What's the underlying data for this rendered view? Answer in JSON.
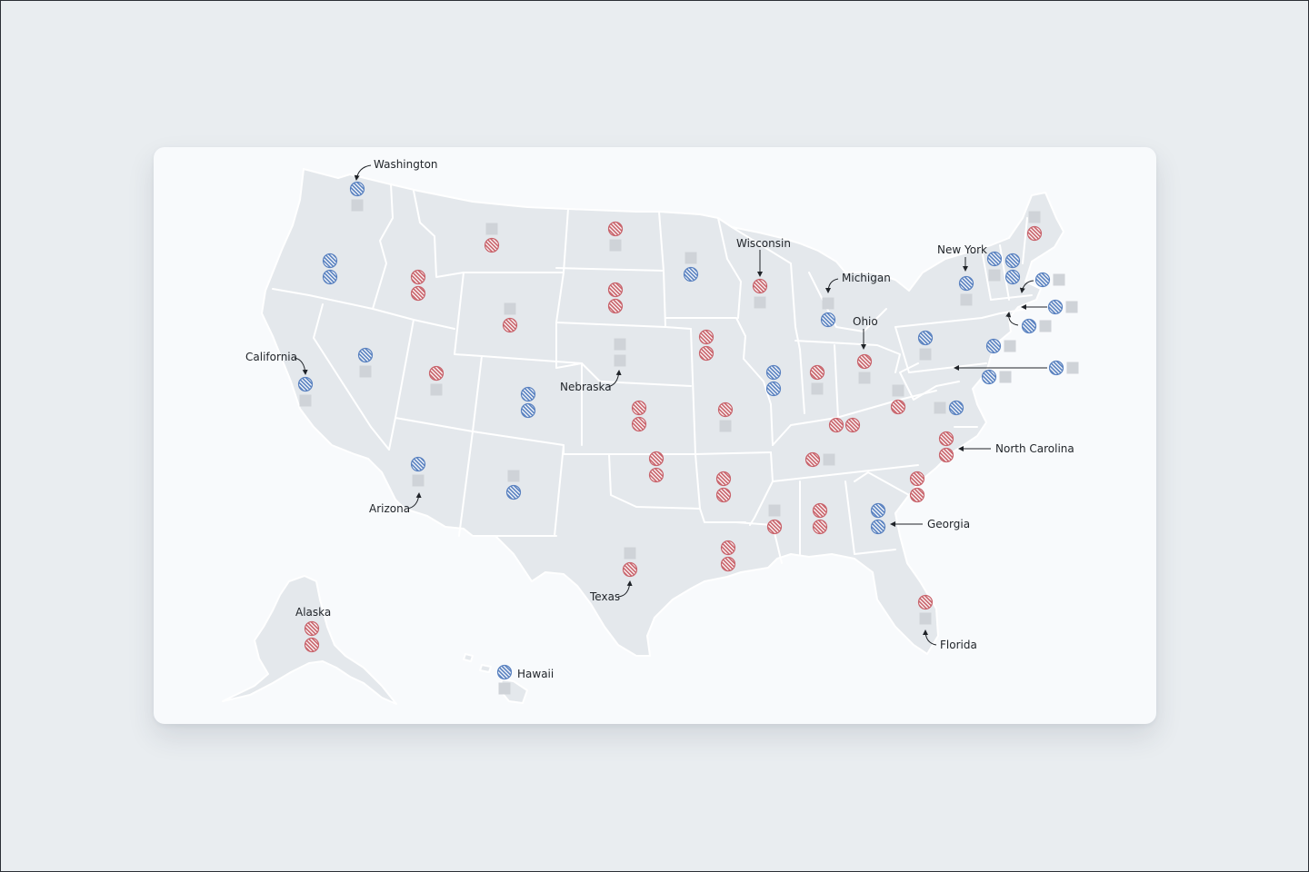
{
  "colors": {
    "background": "#e9edf0",
    "card": "#f8fafc",
    "land": "#e4e8ec",
    "border": "#ffffff",
    "blue": "#5a82c0",
    "red": "#c8646c",
    "gray": "#cfd3d8",
    "text": "#1f2328"
  },
  "legend_symbols": {
    "blue": "blue-hatched-circle",
    "red": "red-hatched-circle",
    "gray": "gray-square"
  },
  "labels": {
    "washington": "Washington",
    "california": "California",
    "arizona": "Arizona",
    "nebraska": "Nebraska",
    "texas": "Texas",
    "alaska": "Alaska",
    "hawaii": "Hawaii",
    "wisconsin": "Wisconsin",
    "michigan": "Michigan",
    "ohio": "Ohio",
    "new_york": "New York",
    "north_carolina": "North Carolina",
    "georgia": "Georgia",
    "florida": "Florida"
  },
  "states": [
    {
      "state": "Washington",
      "markers": [
        "blue",
        "gray"
      ]
    },
    {
      "state": "Oregon",
      "markers": [
        "blue",
        "blue"
      ]
    },
    {
      "state": "California",
      "markers": [
        "blue",
        "gray"
      ]
    },
    {
      "state": "Nevada",
      "markers": [
        "blue",
        "gray"
      ]
    },
    {
      "state": "Idaho",
      "markers": [
        "red",
        "red"
      ]
    },
    {
      "state": "Montana",
      "markers": [
        "gray",
        "red"
      ]
    },
    {
      "state": "Wyoming",
      "markers": [
        "gray",
        "red"
      ]
    },
    {
      "state": "Utah",
      "markers": [
        "red",
        "gray"
      ]
    },
    {
      "state": "Arizona",
      "markers": [
        "blue",
        "gray"
      ]
    },
    {
      "state": "Colorado",
      "markers": [
        "blue",
        "blue"
      ]
    },
    {
      "state": "New Mexico",
      "markers": [
        "gray",
        "blue"
      ]
    },
    {
      "state": "North Dakota",
      "markers": [
        "red",
        "gray"
      ]
    },
    {
      "state": "South Dakota",
      "markers": [
        "red",
        "red"
      ]
    },
    {
      "state": "Nebraska",
      "markers": [
        "gray",
        "gray"
      ]
    },
    {
      "state": "Kansas",
      "markers": [
        "red",
        "red"
      ]
    },
    {
      "state": "Oklahoma",
      "markers": [
        "red",
        "red"
      ]
    },
    {
      "state": "Texas",
      "markers": [
        "gray",
        "red"
      ]
    },
    {
      "state": "Minnesota",
      "markers": [
        "gray",
        "blue"
      ]
    },
    {
      "state": "Iowa",
      "markers": [
        "red",
        "red"
      ]
    },
    {
      "state": "Missouri",
      "markers": [
        "red",
        "gray"
      ]
    },
    {
      "state": "Arkansas",
      "markers": [
        "red",
        "red"
      ]
    },
    {
      "state": "Louisiana",
      "markers": [
        "red",
        "red"
      ]
    },
    {
      "state": "Wisconsin",
      "markers": [
        "red",
        "gray"
      ]
    },
    {
      "state": "Illinois",
      "markers": [
        "blue",
        "blue"
      ]
    },
    {
      "state": "Michigan",
      "markers": [
        "gray",
        "blue"
      ]
    },
    {
      "state": "Indiana",
      "markers": [
        "red",
        "gray"
      ]
    },
    {
      "state": "Ohio",
      "markers": [
        "red",
        "gray"
      ]
    },
    {
      "state": "Kentucky",
      "markers": [
        "red",
        "red"
      ]
    },
    {
      "state": "Tennessee",
      "markers": [
        "red",
        "gray"
      ]
    },
    {
      "state": "Mississippi",
      "markers": [
        "gray",
        "red"
      ]
    },
    {
      "state": "Alabama",
      "markers": [
        "red",
        "red"
      ]
    },
    {
      "state": "Georgia",
      "markers": [
        "blue",
        "blue"
      ]
    },
    {
      "state": "Florida",
      "markers": [
        "red",
        "gray"
      ]
    },
    {
      "state": "South Carolina",
      "markers": [
        "red",
        "red"
      ]
    },
    {
      "state": "North Carolina",
      "markers": [
        "red",
        "red"
      ]
    },
    {
      "state": "Virginia",
      "markers": [
        "gray",
        "blue"
      ]
    },
    {
      "state": "West Virginia",
      "markers": [
        "gray",
        "red"
      ]
    },
    {
      "state": "Pennsylvania",
      "markers": [
        "blue",
        "gray"
      ]
    },
    {
      "state": "New York",
      "markers": [
        "blue",
        "gray"
      ]
    },
    {
      "state": "Vermont",
      "markers": [
        "blue",
        "gray"
      ]
    },
    {
      "state": "New Hampshire",
      "markers": [
        "blue",
        "blue"
      ]
    },
    {
      "state": "Maine",
      "markers": [
        "gray",
        "red"
      ]
    },
    {
      "state": "Massachusetts",
      "markers": [
        "blue",
        "gray"
      ]
    },
    {
      "state": "Rhode Island",
      "markers": [
        "blue",
        "gray"
      ]
    },
    {
      "state": "Connecticut",
      "markers": [
        "blue",
        "gray"
      ]
    },
    {
      "state": "New Jersey",
      "markers": [
        "blue",
        "gray"
      ]
    },
    {
      "state": "Delaware",
      "markers": [
        "blue",
        "gray"
      ]
    },
    {
      "state": "Maryland",
      "markers": [
        "blue",
        "gray"
      ]
    },
    {
      "state": "Alaska",
      "markers": [
        "red",
        "red"
      ]
    },
    {
      "state": "Hawaii",
      "markers": [
        "blue",
        "gray"
      ]
    }
  ]
}
